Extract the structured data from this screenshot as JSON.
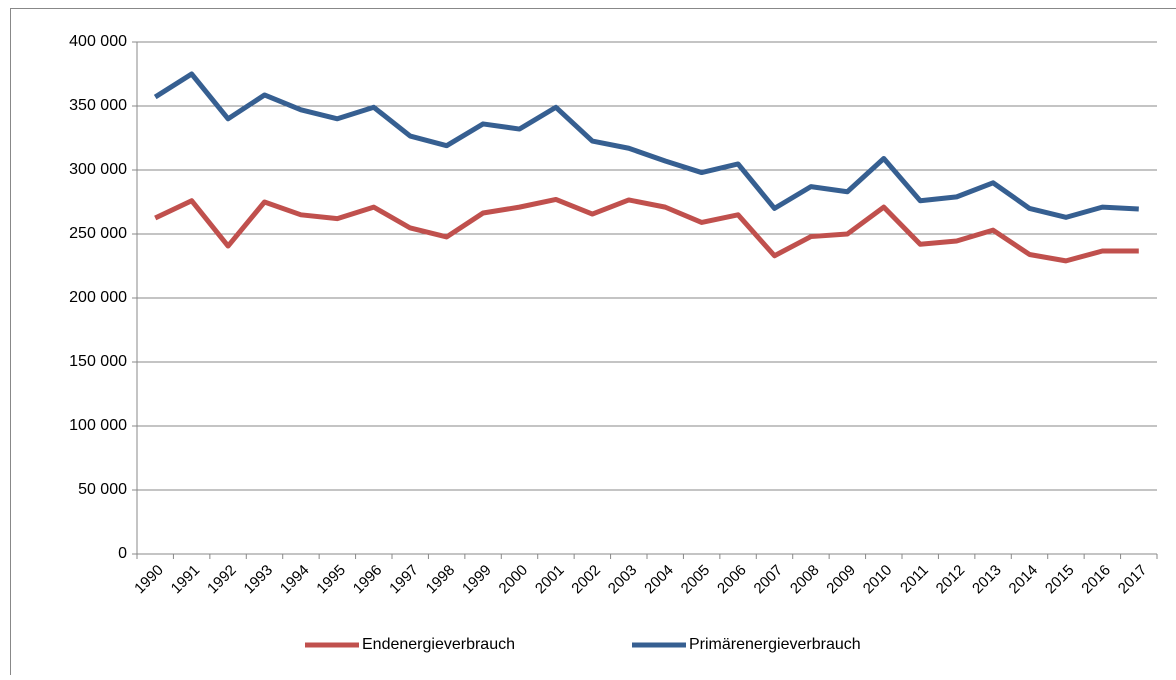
{
  "chart_data": {
    "type": "line",
    "categories": [
      "1990",
      "1991",
      "1992",
      "1993",
      "1994",
      "1995",
      "1996",
      "1997",
      "1998",
      "1999",
      "2000",
      "2001",
      "2002",
      "2003",
      "2004",
      "2005",
      "2006",
      "2007",
      "2008",
      "2009",
      "2010",
      "2011",
      "2012",
      "2013",
      "2014",
      "2015",
      "2016",
      "2017"
    ],
    "series": [
      {
        "name": "Endenergieverbrauch",
        "color": "#c0504d",
        "values": [
          262500,
          276000,
          240600,
          275000,
          265000,
          262000,
          271000,
          254700,
          247700,
          266400,
          271000,
          277000,
          265600,
          276600,
          271000,
          259000,
          265000,
          233000,
          248000,
          250000,
          271000,
          242000,
          244500,
          253000,
          234000,
          229000,
          236700,
          236700
        ]
      },
      {
        "name": "Primärenergieverbrauch",
        "color": "#365f91",
        "values": [
          357000,
          375000,
          340000,
          358600,
          347000,
          340000,
          349000,
          326500,
          319000,
          336000,
          332000,
          349000,
          322600,
          317000,
          307000,
          298000,
          304700,
          270000,
          287000,
          283000,
          309000,
          276000,
          279000,
          290000,
          270000,
          263000,
          271000,
          269500
        ]
      }
    ],
    "ylim": [
      0,
      400000
    ],
    "yticks": [
      0,
      {
        "value": 50000,
        "label": "50 000"
      },
      {
        "value": 100000,
        "label": "100 000"
      },
      {
        "value": 150000,
        "label": "150 000"
      },
      {
        "value": 200000,
        "label": "200 000"
      },
      {
        "value": 250000,
        "label": "250 000"
      },
      {
        "value": 300000,
        "label": "300 000"
      },
      {
        "value": 350000,
        "label": "350 000"
      },
      {
        "value": 400000,
        "label": "400 000"
      }
    ],
    "grid": true,
    "legend": "bottom"
  }
}
